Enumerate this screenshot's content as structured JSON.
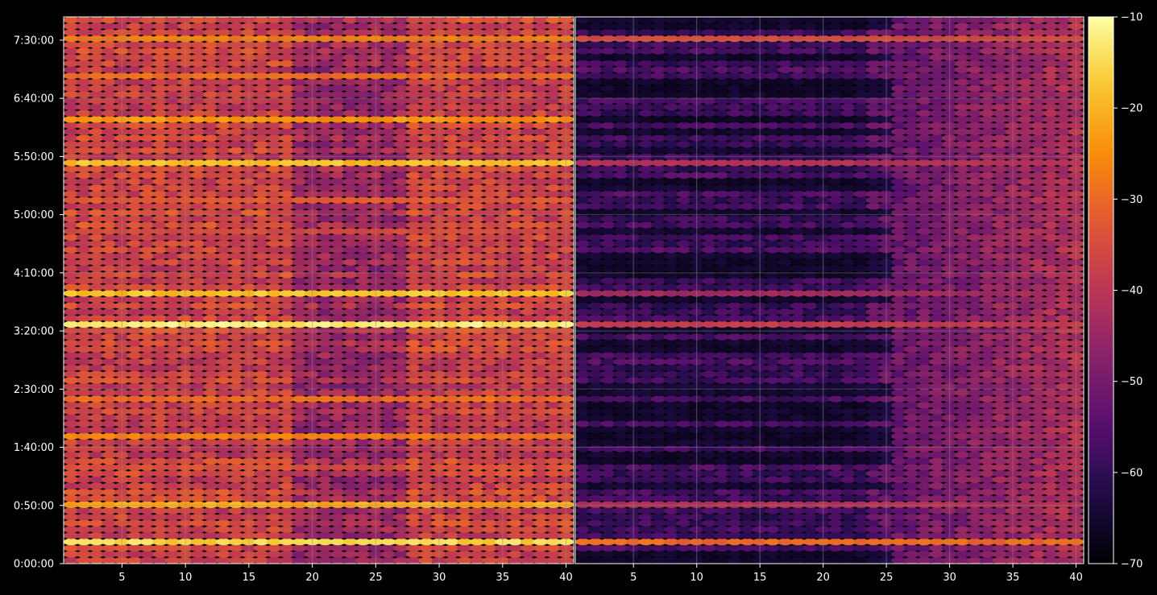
{
  "chart_data": {
    "type": "heatmap",
    "title": "",
    "xlabel": "",
    "ylabel": "",
    "panels": [
      {
        "name": "",
        "x_range": [
          1,
          40
        ],
        "x_ticks": [
          5,
          10,
          15,
          20,
          25,
          30,
          35,
          40
        ],
        "x_tick_labels": [
          "5",
          "10",
          "15",
          "20",
          "25",
          "30",
          "35",
          "40"
        ],
        "level": "bright",
        "bright_rows": [
          3,
          9,
          15,
          20,
          26,
          38,
          43,
          53,
          58,
          64,
          71,
          78,
          84
        ],
        "bright_strength": [
          0.95,
          0.85,
          0.6,
          0.75,
          0.7,
          1.0,
          0.9,
          0.6,
          0.65,
          0.9,
          0.8,
          0.7,
          0.75
        ]
      },
      {
        "name": "",
        "x_range": [
          1,
          40
        ],
        "x_ticks": [
          5,
          10,
          15,
          20,
          25,
          30,
          35,
          40
        ],
        "x_tick_labels": [
          "5",
          "10",
          "15",
          "20",
          "25",
          "30",
          "35",
          "40"
        ],
        "level": "dim",
        "bright_rows": [
          3,
          9,
          38,
          43,
          64,
          84
        ],
        "bright_strength": [
          0.7,
          0.5,
          0.55,
          0.45,
          0.5,
          0.6
        ]
      }
    ],
    "y_range_seconds": [
      0,
      28200
    ],
    "y_ticks_seconds": [
      0,
      3000,
      6000,
      9000,
      12000,
      15000,
      18000,
      21000,
      24000,
      27000
    ],
    "y_tick_labels": [
      "0:00:00",
      "0:50:00",
      "1:40:00",
      "2:30:00",
      "3:20:00",
      "4:10:00",
      "5:00:00",
      "5:50:00",
      "6:40:00",
      "7:30:00"
    ],
    "rows": 88,
    "colorbar": {
      "range": [
        -70,
        -10
      ],
      "ticks": [
        -70,
        -60,
        -50,
        -40,
        -30,
        -20,
        -10
      ],
      "tick_labels": [
        "−70",
        "−60",
        "−50",
        "−40",
        "−30",
        "−20",
        "−10"
      ],
      "colormap": "inferno"
    },
    "grid": true,
    "background": "#000000",
    "grid_color": "#8a8a8a"
  }
}
